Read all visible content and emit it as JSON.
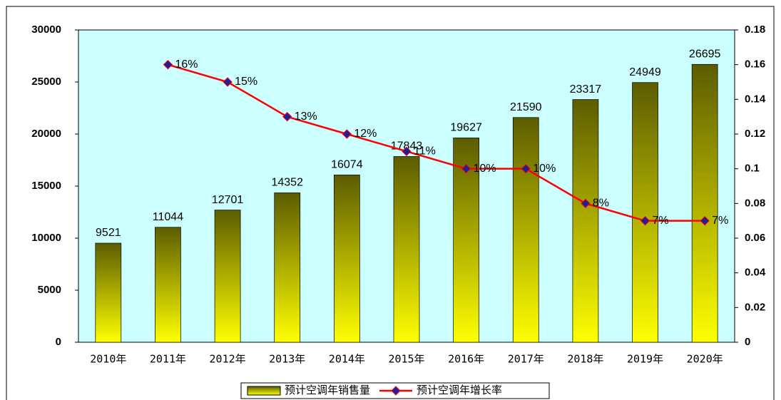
{
  "chart_data": {
    "type": "bar",
    "categories": [
      "2010年",
      "2011年",
      "2012年",
      "2013年",
      "2014年",
      "2015年",
      "2016年",
      "2017年",
      "2018年",
      "2019年",
      "2020年"
    ],
    "series": [
      {
        "name": "预计空调年销售量",
        "type": "bar",
        "color": "#9c9c00",
        "values": [
          9521,
          11044,
          12701,
          14352,
          16074,
          17843,
          19627,
          21590,
          23317,
          24949,
          26695
        ]
      },
      {
        "name": "预计空调年增长率",
        "type": "line",
        "axis": "y2",
        "color": "#ff0000",
        "marker_color": "#1f1f9c",
        "values": [
          null,
          0.16,
          0.15,
          0.13,
          0.12,
          0.11,
          0.1,
          0.1,
          0.08,
          0.07,
          0.07
        ],
        "value_labels": [
          null,
          "16%",
          "15%",
          "13%",
          "12%",
          "11%",
          "10%",
          "10%",
          "8%",
          "7%",
          "7%"
        ]
      }
    ],
    "ylim": [
      0,
      30000
    ],
    "yticks": [
      0,
      5000,
      10000,
      15000,
      20000,
      25000,
      30000
    ],
    "y2lim": [
      0,
      0.18
    ],
    "y2ticks": [
      0,
      0.02,
      0.04,
      0.06,
      0.08,
      0.1,
      0.12,
      0.14,
      0.16,
      0.18
    ],
    "legend": "bottom"
  }
}
